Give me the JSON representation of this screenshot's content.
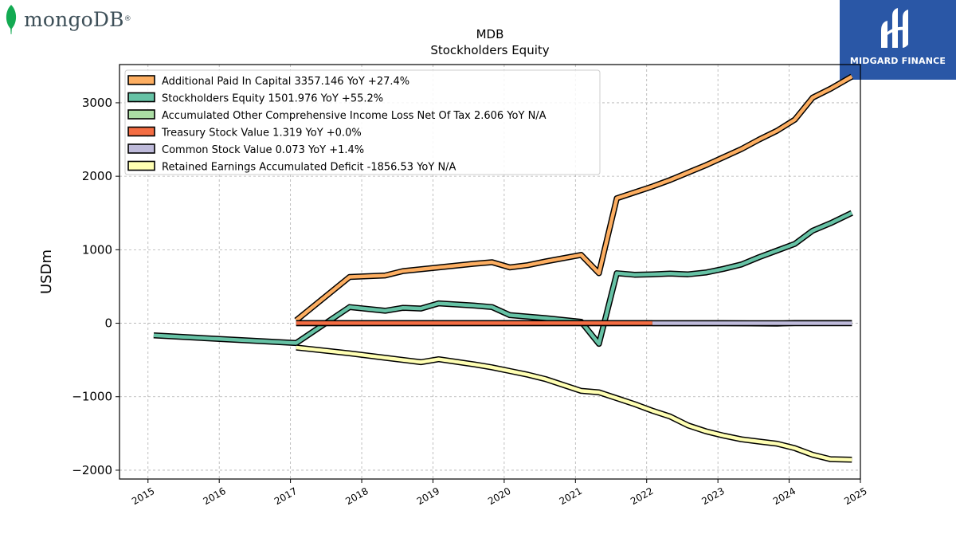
{
  "branding": {
    "left_logo_text": "mongoDB",
    "left_logo_mark": "®",
    "right_logo_text": "MIDGARD FINANCE",
    "right_logo_color": "#2a57a6",
    "mongo_leaf_color": "#13aa52"
  },
  "chart_data": {
    "type": "line",
    "title": "MDB",
    "subtitle": "Stockholders  Equity",
    "ylabel": "USDm",
    "xlabel": "",
    "xlim": [
      2014.6,
      2025.0
    ],
    "ylim": [
      -2120,
      3520
    ],
    "x_ticks": [
      "2015",
      "2016",
      "2017",
      "2018",
      "2019",
      "2020",
      "2021",
      "2022",
      "2023",
      "2024",
      "2025"
    ],
    "y_ticks": [
      -2000,
      -1000,
      0,
      1000,
      2000,
      3000
    ],
    "y_tick_labels": [
      "−2000",
      "−1000",
      "0",
      "1000",
      "2000",
      "3000"
    ],
    "grid": true,
    "legend_position": "top-left",
    "series": [
      {
        "name": "Additional Paid In Capital",
        "legend": "Additional Paid In Capital  3357.146 YoY +27.4%",
        "color": "#fdae61",
        "x": [
          2017.08,
          2017.83,
          2018.33,
          2018.58,
          2019.08,
          2019.58,
          2019.83,
          2020.08,
          2020.33,
          2020.58,
          2021.08,
          2021.33,
          2021.58,
          2021.83,
          2022.08,
          2022.33,
          2022.58,
          2022.83,
          2023.08,
          2023.33,
          2023.58,
          2023.83,
          2024.08,
          2024.33,
          2024.58,
          2024.88
        ],
        "y": [
          40,
          630,
          650,
          710,
          760,
          810,
          830,
          760,
          790,
          840,
          930,
          680,
          1700,
          1780,
          1860,
          1950,
          2050,
          2150,
          2260,
          2370,
          2500,
          2620,
          2770,
          3070,
          3190,
          3357.146
        ]
      },
      {
        "name": "Stockholders Equity",
        "legend": "Stockholders Equity  1501.976 YoY +55.2%",
        "color": "#66c2a5",
        "x": [
          2015.08,
          2017.08,
          2017.83,
          2018.33,
          2018.58,
          2018.83,
          2019.08,
          2019.58,
          2019.83,
          2020.08,
          2020.33,
          2020.58,
          2021.08,
          2021.33,
          2021.58,
          2021.83,
          2022.08,
          2022.33,
          2022.58,
          2022.83,
          2023.08,
          2023.33,
          2023.58,
          2023.83,
          2024.08,
          2024.33,
          2024.58,
          2024.88
        ],
        "y": [
          -165,
          -270,
          220,
          170,
          210,
          200,
          270,
          240,
          220,
          110,
          90,
          70,
          20,
          -280,
          680,
          660,
          665,
          675,
          665,
          690,
          740,
          800,
          900,
          990,
          1080,
          1260,
          1360,
          1501.976
        ]
      },
      {
        "name": "Accumulated Other Comprehensive Income Loss Net Of Tax",
        "legend": "Accumulated Other Comprehensive Income Loss Net Of Tax  2.606 YoY N/A",
        "color": "#abdda4",
        "x": [
          2017.08,
          2018.08,
          2019.08,
          2020.08,
          2021.08,
          2022.08,
          2023.08,
          2023.83,
          2024.08,
          2024.88
        ],
        "y": [
          0,
          0,
          0,
          0,
          0,
          0,
          0,
          -5,
          3,
          2.606
        ]
      },
      {
        "name": "Treasury Stock Value",
        "legend": "Treasury Stock Value  1.319 YoY +0.0%",
        "color": "#f46d43",
        "x": [
          2017.08,
          2022.08
        ],
        "y": [
          1.319,
          1.319
        ]
      },
      {
        "name": "Common Stock Value",
        "legend": "Common Stock Value  0.073 YoY +1.4%",
        "color": "#bebada",
        "x": [
          2022.08,
          2023.08,
          2024.08,
          2024.88
        ],
        "y": [
          0.07,
          0.07,
          0.072,
          0.073
        ]
      },
      {
        "name": "Retained Earnings Accumulated Deficit",
        "legend": "Retained Earnings Accumulated Deficit  -1856.53 YoY N/A",
        "color": "#ffffb3",
        "x": [
          2017.08,
          2017.83,
          2018.33,
          2018.83,
          2019.08,
          2019.58,
          2019.83,
          2020.08,
          2020.33,
          2020.58,
          2021.08,
          2021.33,
          2021.58,
          2021.83,
          2022.08,
          2022.33,
          2022.58,
          2022.83,
          2023.08,
          2023.33,
          2023.58,
          2023.83,
          2024.08,
          2024.33,
          2024.58,
          2024.88
        ],
        "y": [
          -330,
          -410,
          -470,
          -530,
          -490,
          -560,
          -600,
          -650,
          -700,
          -760,
          -920,
          -940,
          -1020,
          -1100,
          -1190,
          -1270,
          -1390,
          -1470,
          -1530,
          -1580,
          -1610,
          -1640,
          -1700,
          -1790,
          -1850,
          -1856.53
        ]
      }
    ]
  }
}
